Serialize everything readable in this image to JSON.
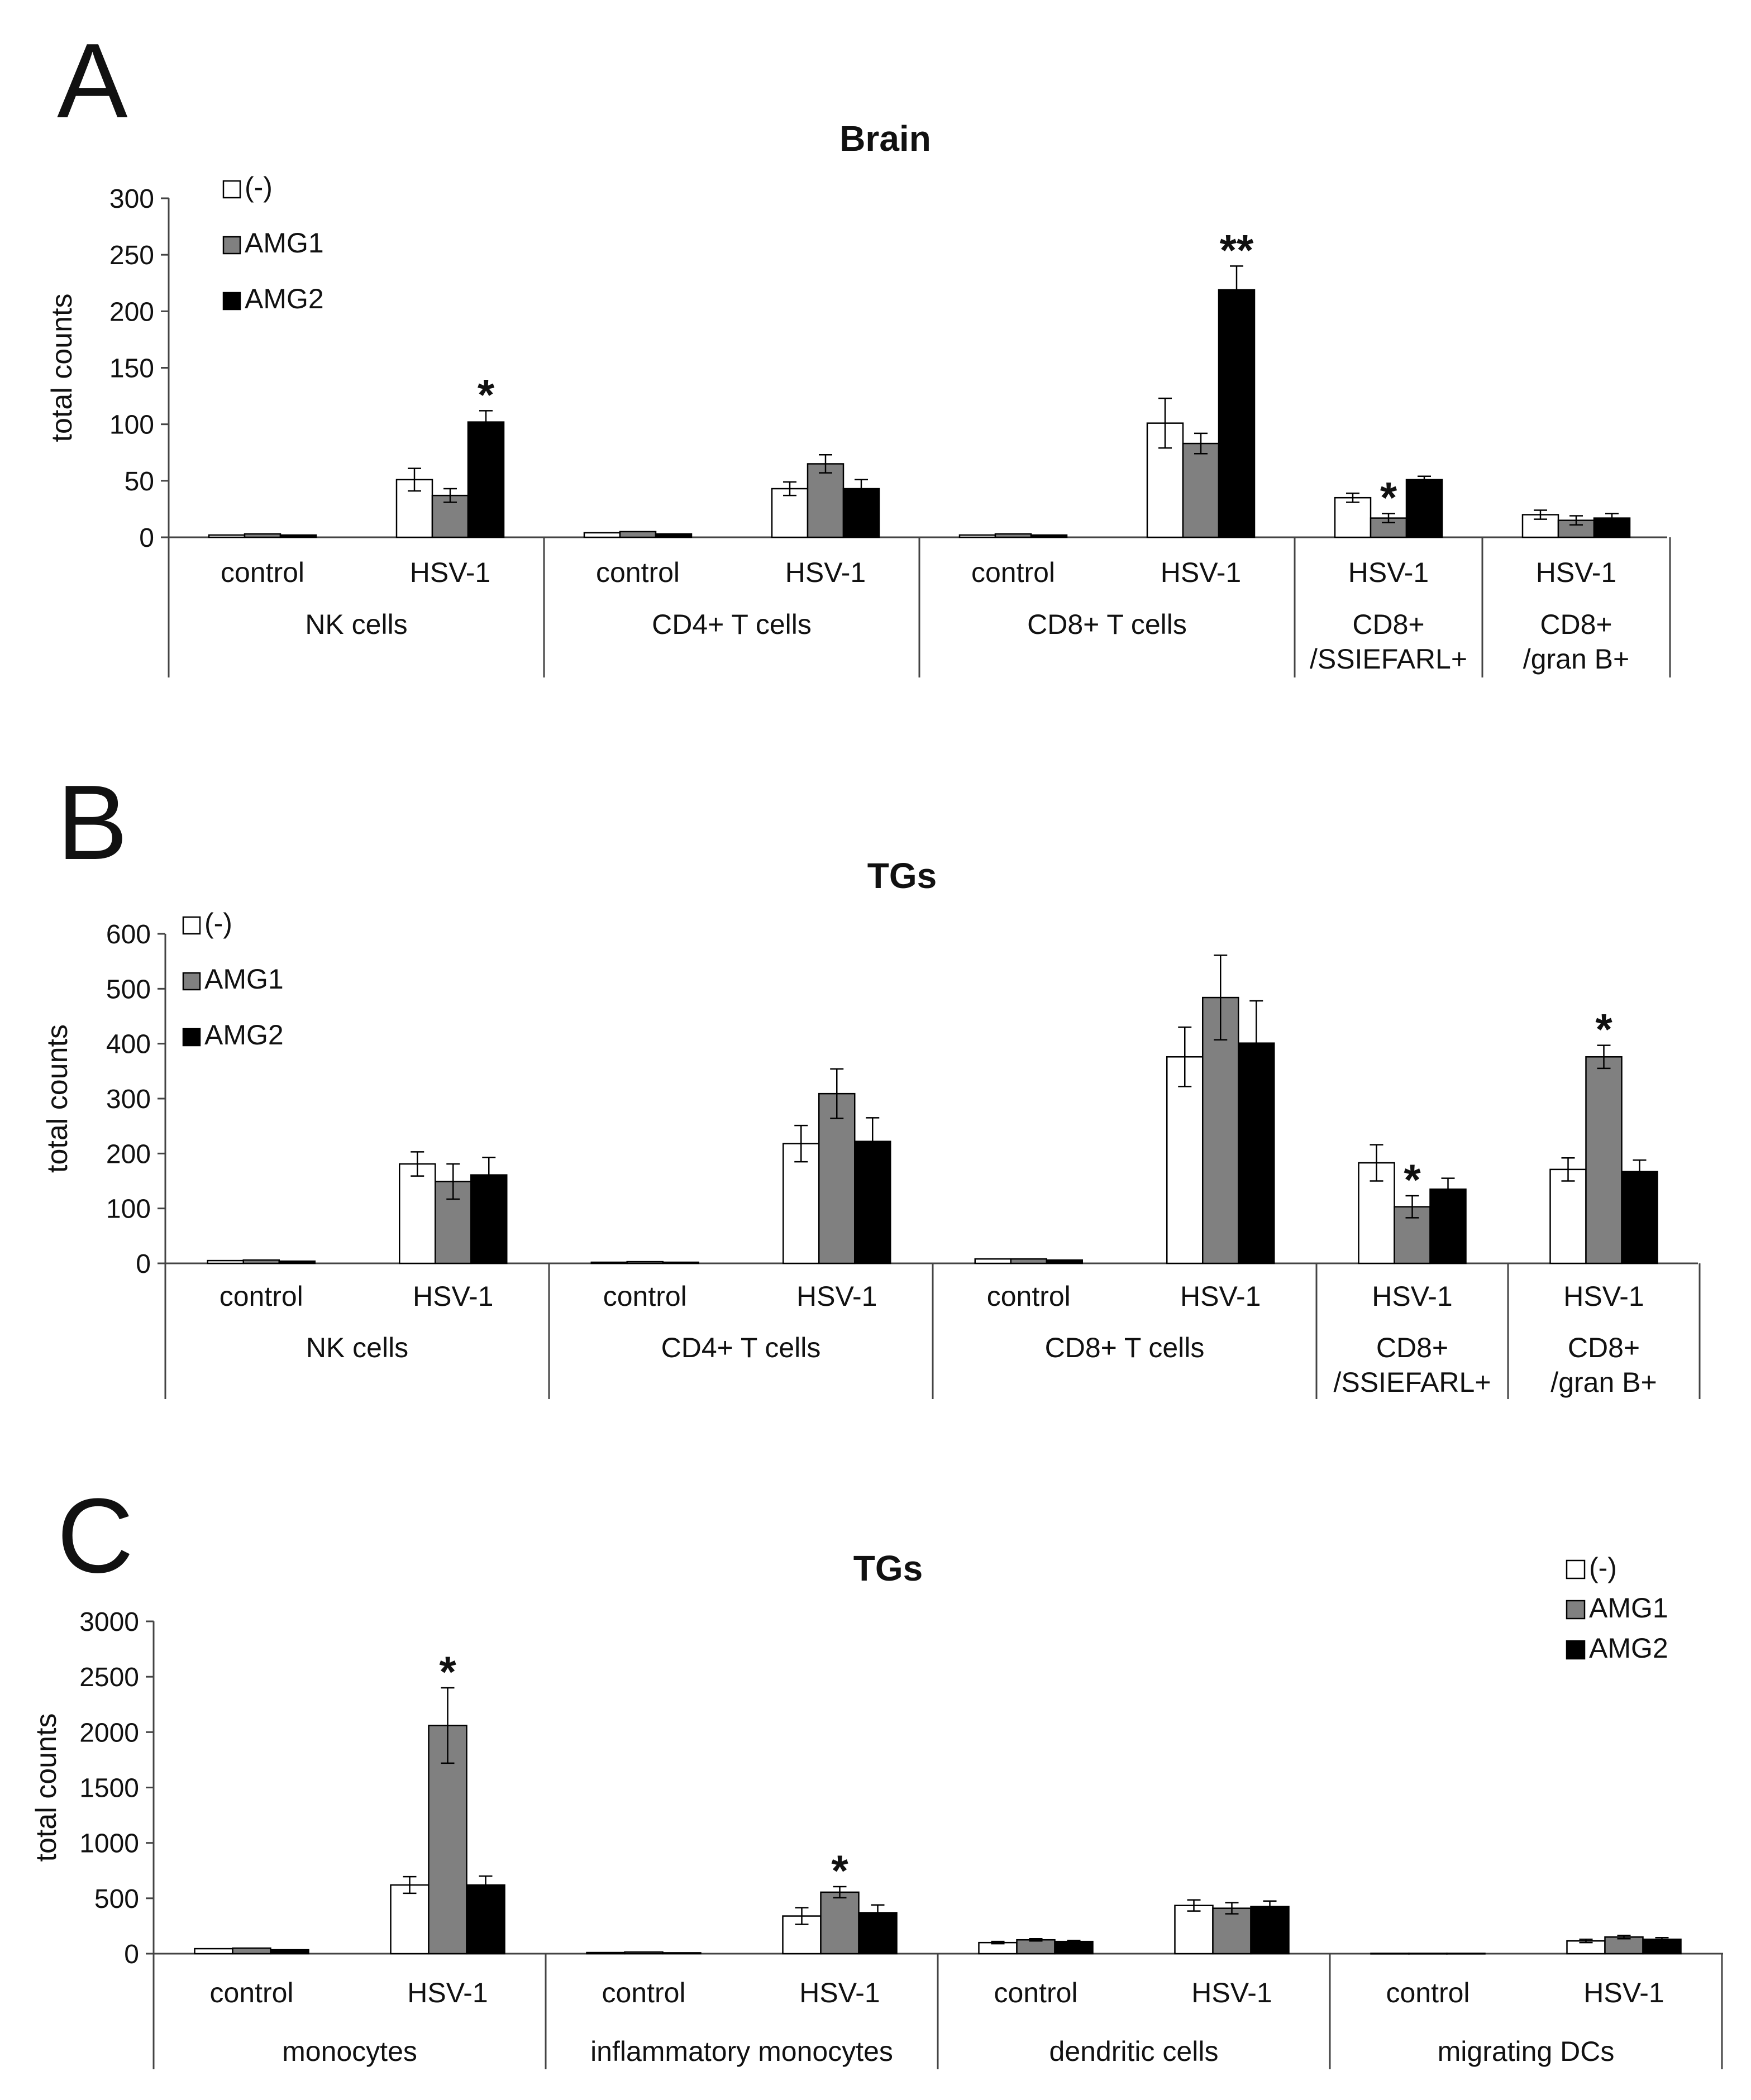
{
  "chart_data": [
    {
      "panel": "A",
      "type": "bar",
      "title": "Brain",
      "ylabel": "total counts",
      "ylim": [
        0,
        300
      ],
      "yticks": [
        0,
        50,
        100,
        150,
        200,
        250,
        300
      ],
      "legend": {
        "entries": [
          "(-)",
          "AMG1",
          "AMG2"
        ],
        "position": "top-left"
      },
      "series_colors": [
        "#ffffff",
        "#808080",
        "#000000"
      ],
      "categories": [
        {
          "label": "control",
          "group": "NK cells",
          "values": [
            2,
            3,
            2
          ],
          "errors": [
            0,
            0,
            0
          ],
          "marks": [
            "",
            "",
            ""
          ]
        },
        {
          "label": "HSV-1",
          "group": "NK cells",
          "values": [
            51,
            37,
            102
          ],
          "errors": [
            10,
            6,
            10
          ],
          "marks": [
            "",
            "",
            "*"
          ]
        },
        {
          "label": "control",
          "group": "CD4+ T cells",
          "values": [
            4,
            5,
            3
          ],
          "errors": [
            0,
            0,
            0
          ],
          "marks": [
            "",
            "",
            ""
          ]
        },
        {
          "label": "HSV-1",
          "group": "CD4+ T cells",
          "values": [
            43,
            65,
            43
          ],
          "errors": [
            6,
            8,
            8
          ],
          "marks": [
            "",
            "",
            ""
          ]
        },
        {
          "label": "control",
          "group": "CD8+ T cells",
          "values": [
            2,
            3,
            2
          ],
          "errors": [
            0,
            0,
            0
          ],
          "marks": [
            "",
            "",
            ""
          ]
        },
        {
          "label": "HSV-1",
          "group": "CD8+ T cells",
          "values": [
            101,
            83,
            219
          ],
          "errors": [
            22,
            9,
            21
          ],
          "marks": [
            "",
            "",
            "**"
          ]
        },
        {
          "label": "HSV-1",
          "group": "CD8+\n/SSIEFARL+",
          "values": [
            35,
            17,
            51
          ],
          "errors": [
            4,
            4,
            3
          ],
          "marks": [
            "",
            "*",
            ""
          ]
        },
        {
          "label": "HSV-1",
          "group": "CD8+\n/gran B+",
          "values": [
            20,
            15,
            17
          ],
          "errors": [
            4,
            4,
            4
          ],
          "marks": [
            "",
            "",
            ""
          ]
        }
      ],
      "groups": [
        {
          "label": "NK cells",
          "span": 2
        },
        {
          "label": "CD4+ T cells",
          "span": 2
        },
        {
          "label": "CD8+ T cells",
          "span": 2
        },
        {
          "label": "CD8+\n/SSIEFARL+",
          "span": 1
        },
        {
          "label": "CD8+\n/gran B+",
          "span": 1
        }
      ]
    },
    {
      "panel": "B",
      "type": "bar",
      "title": "TGs",
      "ylabel": "total counts",
      "ylim": [
        0,
        600
      ],
      "yticks": [
        0,
        100,
        200,
        300,
        400,
        500,
        600
      ],
      "legend": {
        "entries": [
          "(-)",
          "AMG1",
          "AMG2"
        ],
        "position": "top-left"
      },
      "series_colors": [
        "#ffffff",
        "#808080",
        "#000000"
      ],
      "categories": [
        {
          "label": "control",
          "group": "NK cells",
          "values": [
            5,
            6,
            4
          ],
          "errors": [
            0,
            0,
            0
          ],
          "marks": [
            "",
            "",
            ""
          ]
        },
        {
          "label": "HSV-1",
          "group": "NK cells",
          "values": [
            181,
            149,
            161
          ],
          "errors": [
            22,
            32,
            32
          ],
          "marks": [
            "",
            "",
            ""
          ]
        },
        {
          "label": "control",
          "group": "CD4+ T cells",
          "values": [
            2,
            3,
            2
          ],
          "errors": [
            0,
            0,
            0
          ],
          "marks": [
            "",
            "",
            ""
          ]
        },
        {
          "label": "HSV-1",
          "group": "CD4+ T cells",
          "values": [
            218,
            309,
            222
          ],
          "errors": [
            33,
            45,
            43
          ],
          "marks": [
            "",
            "",
            ""
          ]
        },
        {
          "label": "control",
          "group": "CD8+ T cells",
          "values": [
            8,
            8,
            6
          ],
          "errors": [
            0,
            0,
            0
          ],
          "marks": [
            "",
            "",
            ""
          ]
        },
        {
          "label": "HSV-1",
          "group": "CD8+ T cells",
          "values": [
            376,
            484,
            401
          ],
          "errors": [
            54,
            77,
            77
          ],
          "marks": [
            "",
            "",
            ""
          ]
        },
        {
          "label": "HSV-1",
          "group": "CD8+\n/SSIEFARL+",
          "values": [
            183,
            103,
            135
          ],
          "errors": [
            33,
            20,
            20
          ],
          "marks": [
            "",
            "*",
            ""
          ]
        },
        {
          "label": "HSV-1",
          "group": "CD8+\n/gran B+",
          "values": [
            171,
            376,
            167
          ],
          "errors": [
            21,
            21,
            21
          ],
          "marks": [
            "",
            "*",
            ""
          ]
        }
      ],
      "groups": [
        {
          "label": "NK cells",
          "span": 2
        },
        {
          "label": "CD4+ T cells",
          "span": 2
        },
        {
          "label": "CD8+ T cells",
          "span": 2
        },
        {
          "label": "CD8+\n/SSIEFARL+",
          "span": 1
        },
        {
          "label": "CD8+\n/gran B+",
          "span": 1
        }
      ]
    },
    {
      "panel": "C",
      "type": "bar",
      "title": "TGs",
      "ylabel": "total counts",
      "ylim": [
        0,
        3000
      ],
      "yticks": [
        0,
        500,
        1000,
        1500,
        2000,
        2500,
        3000
      ],
      "legend": {
        "entries": [
          "(-)",
          "AMG1",
          "AMG2"
        ],
        "position": "top-right"
      },
      "series_colors": [
        "#ffffff",
        "#808080",
        "#000000"
      ],
      "categories": [
        {
          "label": "control",
          "group": "monocytes",
          "values": [
            45,
            50,
            35
          ],
          "errors": [
            0,
            0,
            0
          ],
          "marks": [
            "",
            "",
            ""
          ]
        },
        {
          "label": "HSV-1",
          "group": "monocytes",
          "values": [
            620,
            2060,
            620
          ],
          "errors": [
            75,
            340,
            80
          ],
          "marks": [
            "",
            "*",
            ""
          ]
        },
        {
          "label": "control",
          "group": "inflammatory monocytes",
          "values": [
            10,
            15,
            8
          ],
          "errors": [
            0,
            0,
            0
          ],
          "marks": [
            "",
            "",
            ""
          ]
        },
        {
          "label": "HSV-1",
          "group": "inflammatory monocytes",
          "values": [
            340,
            555,
            370
          ],
          "errors": [
            75,
            50,
            70
          ],
          "marks": [
            "",
            "*",
            ""
          ]
        },
        {
          "label": "control",
          "group": "dendritic cells",
          "values": [
            100,
            125,
            110
          ],
          "errors": [
            10,
            10,
            10
          ],
          "marks": [
            "",
            "",
            ""
          ]
        },
        {
          "label": "HSV-1",
          "group": "dendritic cells",
          "values": [
            435,
            410,
            425
          ],
          "errors": [
            50,
            50,
            50
          ],
          "marks": [
            "",
            "",
            ""
          ]
        },
        {
          "label": "control",
          "group": "migrating DCs",
          "values": [
            3,
            3,
            3
          ],
          "errors": [
            0,
            0,
            0
          ],
          "marks": [
            "",
            "",
            ""
          ]
        },
        {
          "label": "HSV-1",
          "group": "migrating DCs",
          "values": [
            115,
            150,
            130
          ],
          "errors": [
            15,
            15,
            15
          ],
          "marks": [
            "",
            "",
            ""
          ]
        }
      ],
      "groups": [
        {
          "label": "monocytes",
          "span": 2
        },
        {
          "label": "inflammatory monocytes",
          "span": 2
        },
        {
          "label": "dendritic cells",
          "span": 2
        },
        {
          "label": "migrating DCs",
          "span": 2
        }
      ]
    }
  ]
}
